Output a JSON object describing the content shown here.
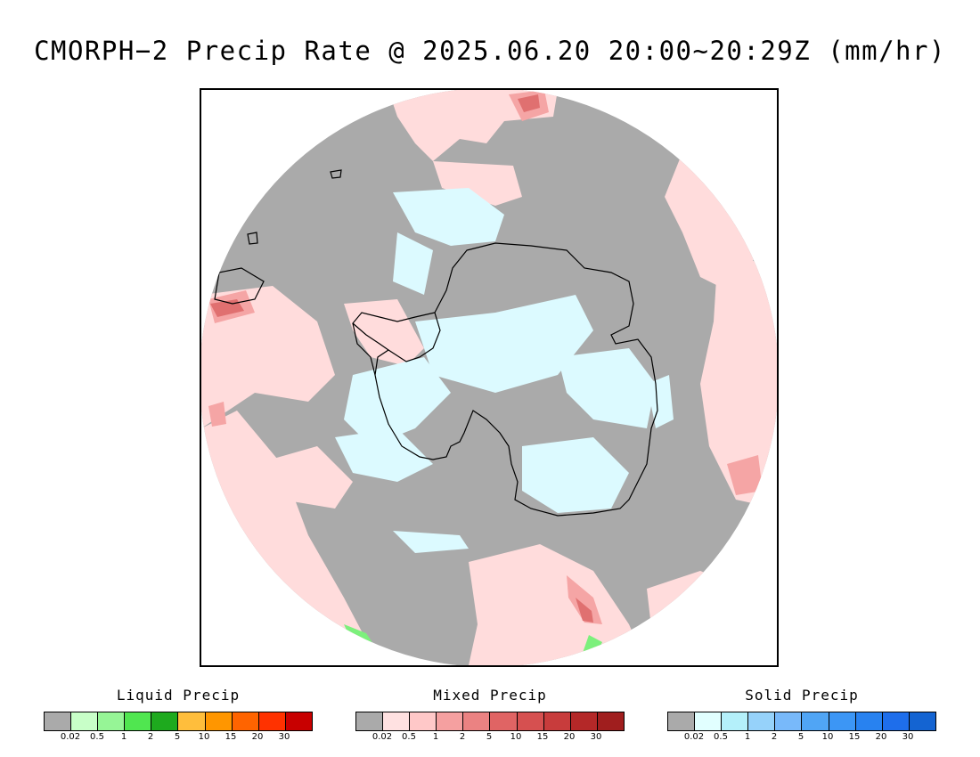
{
  "title": "CMORPH−2 Precip Rate @ 2025.06.20 20:00~20:29Z (mm/hr)",
  "map": {
    "projection": "south-polar-stereographic",
    "region": "Antarctica",
    "background_color": "#aaaaaa",
    "colors": {
      "no_precip": "#aaaaaa",
      "mixed_light": "#ffdcdc",
      "mixed_medium": "#f5a5a5",
      "mixed_heavy": "#e07070",
      "solid_light": "#dcfaff",
      "liquid_light": "#7cf07c",
      "coastline": "#000000"
    }
  },
  "legends": [
    {
      "title": "Liquid Precip",
      "ticks": [
        "0.02",
        "0.5",
        "1",
        "2",
        "5",
        "10",
        "15",
        "20",
        "30"
      ],
      "colors": [
        "#aaaaaa",
        "#c8ffc8",
        "#96f596",
        "#50e650",
        "#1eaa1e",
        "#ffbe3c",
        "#ff9600",
        "#ff6400",
        "#ff3200",
        "#c80000"
      ]
    },
    {
      "title": "Mixed Precip",
      "ticks": [
        "0.02",
        "0.5",
        "1",
        "2",
        "5",
        "10",
        "15",
        "20",
        "30"
      ],
      "colors": [
        "#aaaaaa",
        "#ffe1e1",
        "#ffc8c8",
        "#f5a0a0",
        "#eb8282",
        "#e06464",
        "#d65050",
        "#c83c3c",
        "#b42828",
        "#a01e1e"
      ]
    },
    {
      "title": "Solid Precip",
      "ticks": [
        "0.02",
        "0.5",
        "1",
        "2",
        "5",
        "10",
        "15",
        "20",
        "30"
      ],
      "colors": [
        "#aaaaaa",
        "#e1ffff",
        "#b4f0fa",
        "#96d2fa",
        "#78b9fa",
        "#50a5f5",
        "#3c96f5",
        "#2882f0",
        "#1e6eeb",
        "#1464d2"
      ]
    }
  ]
}
